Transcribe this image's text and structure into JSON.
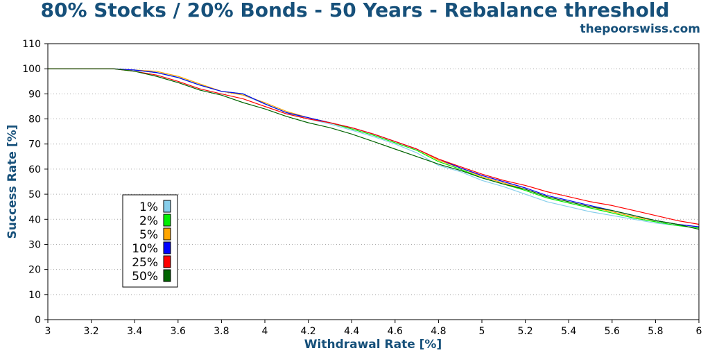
{
  "header": {
    "title": "80% Stocks / 20% Bonds - 50 Years - Rebalance threshold",
    "credit": "thepoorswiss.com"
  },
  "chart_data": {
    "type": "line",
    "title": "80% Stocks / 20% Bonds - 50 Years - Rebalance threshold",
    "xlabel": "Withdrawal Rate [%]",
    "ylabel": "Success Rate [%]",
    "xlim": [
      3,
      6
    ],
    "ylim": [
      0,
      110
    ],
    "x_ticks": [
      "3",
      "3.2",
      "3.4",
      "3.6",
      "3.8",
      "4",
      "4.2",
      "4.4",
      "4.6",
      "4.8",
      "5",
      "5.2",
      "5.4",
      "5.6",
      "5.8",
      "6"
    ],
    "y_ticks": [
      "0",
      "10",
      "20",
      "30",
      "40",
      "50",
      "60",
      "70",
      "80",
      "90",
      "100",
      "110"
    ],
    "grid": true,
    "legend_position": "left",
    "x": [
      3.0,
      3.1,
      3.2,
      3.3,
      3.4,
      3.5,
      3.6,
      3.7,
      3.8,
      3.9,
      4.0,
      4.1,
      4.2,
      4.3,
      4.4,
      4.5,
      4.6,
      4.7,
      4.8,
      4.9,
      5.0,
      5.1,
      5.2,
      5.3,
      5.4,
      5.5,
      5.6,
      5.7,
      5.8,
      5.9,
      6.0
    ],
    "series": [
      {
        "name": "1%",
        "color": "#87ceeb",
        "values": [
          100,
          100,
          100,
          100,
          99.5,
          98.5,
          96.5,
          93.5,
          91,
          89.5,
          86,
          82.5,
          80,
          78,
          75.5,
          73,
          70,
          66.5,
          61.5,
          59,
          55.5,
          53,
          50,
          47,
          45,
          43,
          41.5,
          40,
          38.5,
          37.5,
          36.5
        ]
      },
      {
        "name": "2%",
        "color": "#00ee00",
        "values": [
          100,
          100,
          100,
          100,
          99.5,
          98.5,
          96.5,
          93.5,
          91,
          90,
          86,
          82.5,
          80.5,
          78.5,
          76,
          73.5,
          70.5,
          67.5,
          63,
          60,
          56.5,
          54,
          51.5,
          48.5,
          46.5,
          44.5,
          42.5,
          40.5,
          39,
          37.5,
          36.5
        ]
      },
      {
        "name": "5%",
        "color": "#ffa500",
        "values": [
          100,
          100,
          100,
          100,
          99.5,
          99,
          97,
          94,
          91,
          89.5,
          86.5,
          83,
          80.5,
          78.5,
          76.5,
          74,
          71,
          68,
          63.5,
          60.5,
          57,
          54.5,
          52,
          49,
          47,
          45,
          43,
          41,
          39.5,
          38,
          37
        ]
      },
      {
        "name": "10%",
        "color": "#0000ff",
        "values": [
          100,
          100,
          100,
          100,
          99.5,
          98.5,
          96.5,
          93.5,
          91,
          90,
          86,
          82.5,
          80.5,
          78.5,
          76.5,
          74,
          71,
          68,
          64,
          60.5,
          57.5,
          55,
          52.5,
          49.5,
          47.5,
          45.5,
          43.5,
          41.5,
          39.5,
          38,
          37
        ]
      },
      {
        "name": "25%",
        "color": "#ff0000",
        "values": [
          100,
          100,
          100,
          100,
          99,
          97.5,
          95,
          92,
          90,
          88,
          85,
          82,
          80,
          78.5,
          76.5,
          74,
          71,
          68,
          64,
          61,
          58,
          55.5,
          53.5,
          51,
          49,
          47,
          45.5,
          43.5,
          41.5,
          39.5,
          38
        ]
      },
      {
        "name": "50%",
        "color": "#006400",
        "values": [
          100,
          100,
          100,
          100,
          99,
          97,
          94.5,
          91.5,
          89.5,
          86.5,
          84,
          81,
          78.5,
          76.5,
          74,
          71,
          68,
          65,
          62,
          59.5,
          56.5,
          54,
          52,
          49,
          47,
          45,
          43.5,
          41.5,
          39.5,
          38,
          36
        ]
      }
    ]
  }
}
